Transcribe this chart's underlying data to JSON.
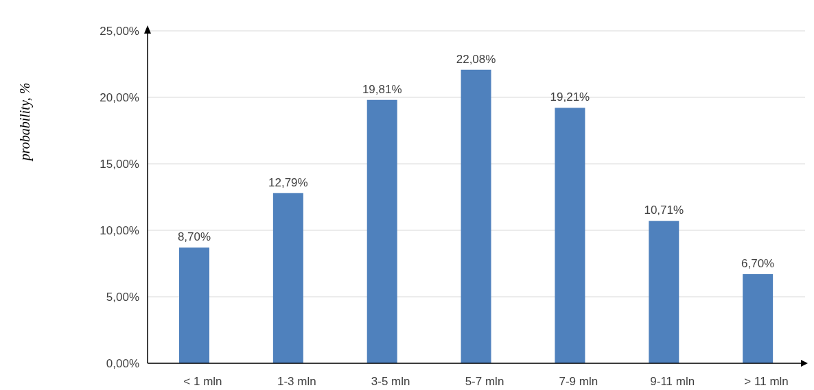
{
  "chart_data": {
    "type": "bar",
    "ylabel": "probability, %",
    "categories": [
      "< 1 mln",
      "1-3 mln",
      "3-5 mln",
      "5-7 mln",
      "7-9 mln",
      "9-11 mln",
      "> 11 mln"
    ],
    "values": [
      8.7,
      12.79,
      19.81,
      22.08,
      19.21,
      10.71,
      6.7
    ],
    "value_labels": [
      "8,70%",
      "12,79%",
      "19,81%",
      "22,08%",
      "19,21%",
      "10,71%",
      "6,70%"
    ],
    "color": "#4f81bd",
    "ylim": [
      0,
      25
    ],
    "yticks": [
      {
        "value": 0,
        "label": "0,00%"
      },
      {
        "value": 5,
        "label": "5,00%"
      },
      {
        "value": 10,
        "label": "10,00%"
      },
      {
        "value": 15,
        "label": "15,00%"
      },
      {
        "value": 20,
        "label": "20,00%"
      },
      {
        "value": 25,
        "label": "25,00%"
      }
    ],
    "grid": "y"
  }
}
